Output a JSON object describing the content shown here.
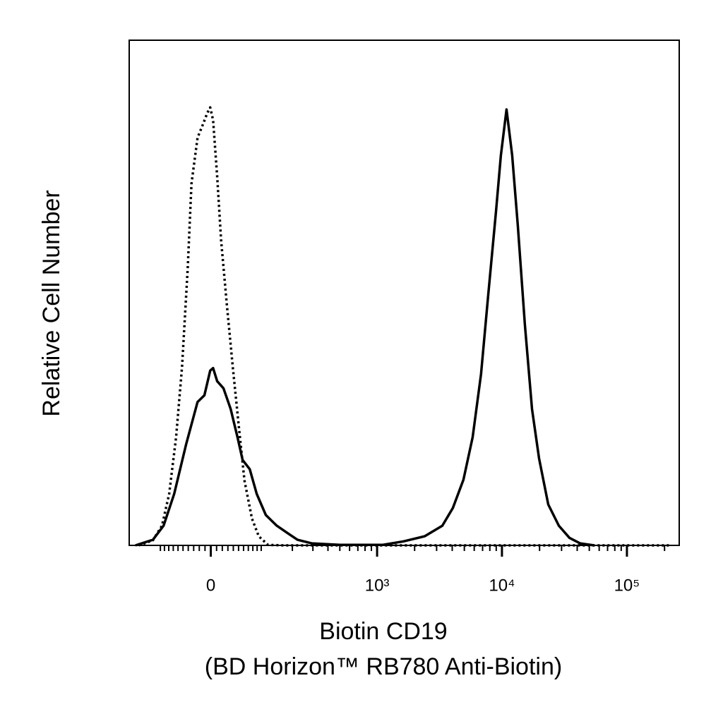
{
  "chart_data": {
    "type": "line",
    "ylabel": "Relative Cell Number",
    "xlabel": [
      "Biotin CD19",
      "(BD Horizon™ RB780 Anti-Biotin)"
    ],
    "x_scale": "biexponential",
    "xlim": [
      -200,
      262144
    ],
    "ylim": [
      0,
      100
    ],
    "xticks": [
      0,
      {
        "value": 1000,
        "label": "10³"
      },
      {
        "value": 10000,
        "label": "10⁴"
      },
      {
        "value": 100000,
        "label": "10⁵"
      }
    ],
    "xminor_ticks": [
      -100,
      -90,
      -80,
      -70,
      -60,
      -50,
      -40,
      -30,
      -20,
      -10,
      10,
      20,
      30,
      40,
      50,
      60,
      70,
      80,
      90,
      100,
      200,
      300,
      400,
      500,
      600,
      700,
      800,
      900,
      2000,
      3000,
      4000,
      5000,
      6000,
      7000,
      8000,
      9000,
      20000,
      30000,
      40000,
      50000,
      60000,
      70000,
      80000,
      90000,
      200000
    ],
    "series": [
      {
        "color": "#000000",
        "style": "solid",
        "x": [
          -176,
          -120,
          -92,
          -68,
          -44,
          -23,
          -11,
          -1,
          4,
          11,
          22,
          35,
          48,
          58,
          73,
          89,
          112,
          144,
          179,
          222,
          293,
          501,
          1102,
          1629,
          2406,
          3332,
          4045,
          4920,
          5825,
          6806,
          7750,
          8957,
          9810,
          10885,
          12075,
          13400,
          15260,
          17400,
          19825,
          23480,
          28540,
          34690,
          42130,
          54660
        ],
        "values": [
          0,
          1.1,
          3.9,
          10.2,
          20.0,
          28.4,
          29.7,
          34.6,
          35.1,
          32.5,
          31.1,
          27.0,
          21.4,
          16.9,
          15.1,
          10.2,
          6.0,
          3.9,
          2.5,
          1.1,
          0.4,
          0.1,
          0.1,
          0.8,
          1.8,
          3.9,
          7.4,
          13.0,
          21.4,
          33.9,
          49.3,
          66.1,
          77.2,
          86.3,
          77.2,
          63.3,
          43.7,
          27.0,
          17.2,
          8.1,
          3.9,
          1.5,
          0.4,
          0
        ]
      },
      {
        "color": "#000000",
        "style": "dotted",
        "x": [
          -164,
          -120,
          -96,
          -79,
          -64,
          -52,
          -41,
          -34,
          -23,
          -13,
          -6,
          -1,
          4,
          11,
          18,
          28,
          39,
          50,
          62,
          78,
          94,
          118,
          167,
          228000
        ],
        "values": [
          0,
          1.0,
          3.9,
          10.2,
          21.4,
          35.3,
          54.9,
          71.6,
          80.7,
          83.5,
          85.6,
          86.7,
          84.2,
          73.0,
          60.3,
          47.8,
          35.3,
          24.0,
          12.8,
          5.3,
          1.8,
          0.1,
          0,
          0
        ]
      }
    ]
  }
}
